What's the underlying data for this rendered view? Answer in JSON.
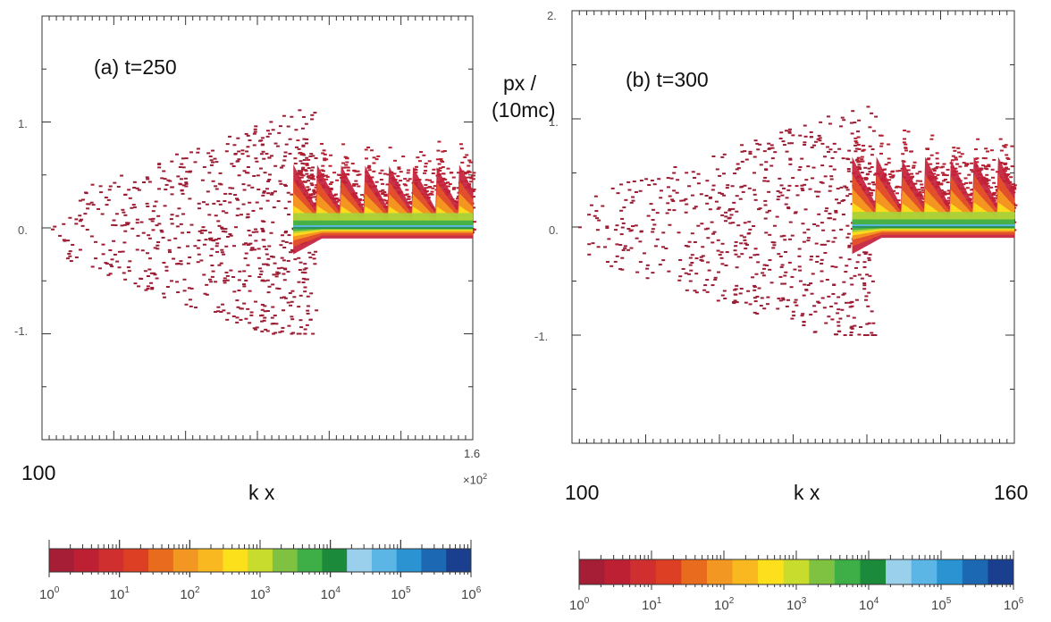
{
  "chart_data": [
    {
      "type": "scatter",
      "panel_label": "(a) t=250",
      "x_tick_left": "100",
      "x_tick_right": "1.6",
      "x_multiplier": "×10",
      "x_multiplier_exp": "2",
      "xlabel": "k x",
      "ylabel": "",
      "y_ticks": [
        "1.",
        "0.",
        "-1."
      ],
      "xlim": [
        100,
        160
      ],
      "ylim": [
        -2,
        2
      ],
      "phase_front_x": 135,
      "core_band_p": 0.0,
      "spike_max_p": 0.6,
      "scatter_extent_p": [
        -1.0,
        1.2
      ],
      "colorscale": {
        "min_label": "10",
        "min_exp": "0",
        "tick_exponents": [
          "0",
          "1",
          "2",
          "3",
          "4",
          "5",
          "6"
        ],
        "tick_base": "10",
        "colors": [
          "#a51e35",
          "#bd2033",
          "#cf2f2e",
          "#dd3f24",
          "#e86b1e",
          "#f29722",
          "#f9b81f",
          "#fde01c",
          "#c8dc2e",
          "#7fc241",
          "#3eae47",
          "#1b8a3a",
          "#9ad0ec",
          "#5bb6e6",
          "#2b93d1",
          "#1c68b3",
          "#1a3f8e"
        ],
        "range": [
          1,
          1000000
        ]
      }
    },
    {
      "type": "scatter",
      "panel_label": "(b) t=300",
      "x_tick_left": "100",
      "x_tick_right": "160",
      "xlabel": "k x",
      "ylabel_line1": "px  /",
      "ylabel_line2": "(10mc)",
      "y_ticks": [
        "2.",
        "1.",
        "0.",
        "-1."
      ],
      "xlim": [
        100,
        160
      ],
      "ylim": [
        -2,
        2
      ],
      "phase_front_x": 138,
      "core_band_p": 0.0,
      "spike_max_p": 0.65,
      "scatter_extent_p": [
        -1.0,
        1.15
      ],
      "colorscale": {
        "tick_exponents": [
          "0",
          "1",
          "2",
          "3",
          "4",
          "5",
          "6"
        ],
        "tick_base": "10",
        "colors": [
          "#a51e35",
          "#bd2033",
          "#cf2f2e",
          "#dd3f24",
          "#e86b1e",
          "#f29722",
          "#f9b81f",
          "#fde01c",
          "#c8dc2e",
          "#7fc241",
          "#3eae47",
          "#1b8a3a",
          "#9ad0ec",
          "#5bb6e6",
          "#2b93d1",
          "#1c68b3",
          "#1a3f8e"
        ],
        "range": [
          1,
          1000000
        ]
      }
    }
  ]
}
